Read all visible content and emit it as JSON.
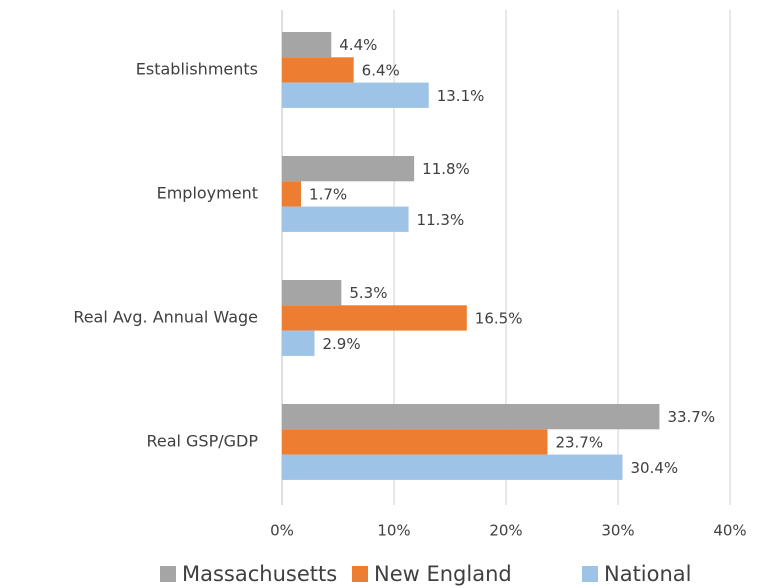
{
  "chart_data": {
    "type": "hbar",
    "categories": [
      "Establishments",
      "Employment",
      "Real Avg. Annual Wage",
      "Real GSP/GDP"
    ],
    "series": [
      {
        "name": "Massachusetts",
        "color": "#a5a5a5",
        "values": [
          4.4,
          11.8,
          5.3,
          33.7
        ],
        "value_labels": [
          "4.4%",
          "11.8%",
          "5.3%",
          "33.7%"
        ]
      },
      {
        "name": "New England",
        "color": "#ed7d31",
        "values": [
          6.4,
          1.7,
          16.5,
          23.7
        ],
        "value_labels": [
          "6.4%",
          "1.7%",
          "16.5%",
          "23.7%"
        ]
      },
      {
        "name": "National",
        "color": "#9dc3e6",
        "values": [
          13.1,
          11.3,
          2.9,
          30.4
        ],
        "value_labels": [
          "13.1%",
          "11.3%",
          "2.9%",
          "30.4%"
        ]
      }
    ],
    "xlim": [
      0,
      40
    ],
    "xticks": [
      {
        "value": 0,
        "label": "0%"
      },
      {
        "value": 10,
        "label": "10%"
      },
      {
        "value": 20,
        "label": "20%"
      },
      {
        "value": 30,
        "label": "30%"
      },
      {
        "value": 40,
        "label": "40%"
      }
    ],
    "grid": true,
    "legend": "bottom"
  }
}
